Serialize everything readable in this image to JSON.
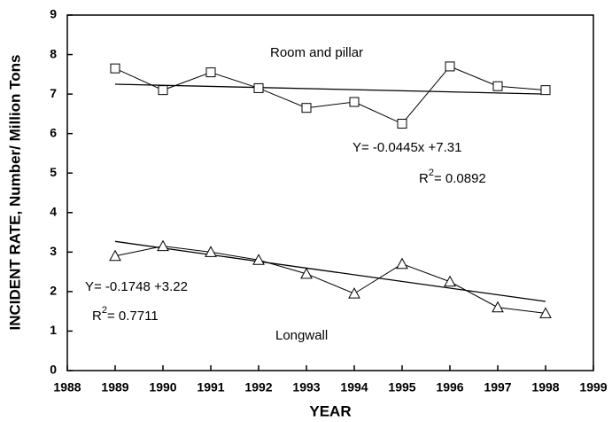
{
  "chart_data": {
    "type": "line",
    "x_label": "YEAR",
    "y_label": "INCIDENT RATE, Number/ Million Tons",
    "x": [
      1989,
      1990,
      1991,
      1992,
      1993,
      1994,
      1995,
      1996,
      1997,
      1998
    ],
    "series": [
      {
        "color": "#000000",
        "marker": "square",
        "values": [
          7.65,
          7.1,
          7.55,
          7.15,
          6.65,
          6.8,
          6.25,
          7.7,
          7.2,
          7.1
        ],
        "trend": {
          "x": [
            1989,
            1998
          ],
          "values": [
            7.25,
            7.0
          ]
        }
      },
      {
        "color": "#000000",
        "marker": "triangle",
        "values": [
          2.9,
          3.15,
          3.0,
          2.8,
          2.45,
          1.95,
          2.7,
          2.25,
          1.6,
          1.45
        ],
        "trend": {
          "x": [
            1989,
            1998
          ],
          "values": [
            3.27,
            1.75
          ]
        }
      }
    ],
    "annotations": [
      {
        "text": "Room and pillar"
      },
      {
        "text": "Y= -0.0445x +7.31"
      },
      {
        "base": "R",
        "sup": "2",
        "rest": "= 0.0892"
      },
      {
        "text": "Longwall"
      },
      {
        "text": "Y= -0.1748 +3.22"
      },
      {
        "base": "R",
        "sup": "2",
        "rest": "= 0.7711"
      }
    ],
    "xlim": [
      1988,
      1999
    ],
    "xticks": [
      1988,
      1989,
      1990,
      1991,
      1992,
      1993,
      1994,
      1995,
      1996,
      1997,
      1998,
      1999
    ],
    "ylim": [
      0,
      9
    ],
    "yticks": [
      0,
      1,
      2,
      3,
      4,
      5,
      6,
      7,
      8,
      9
    ],
    "grid": false
  }
}
